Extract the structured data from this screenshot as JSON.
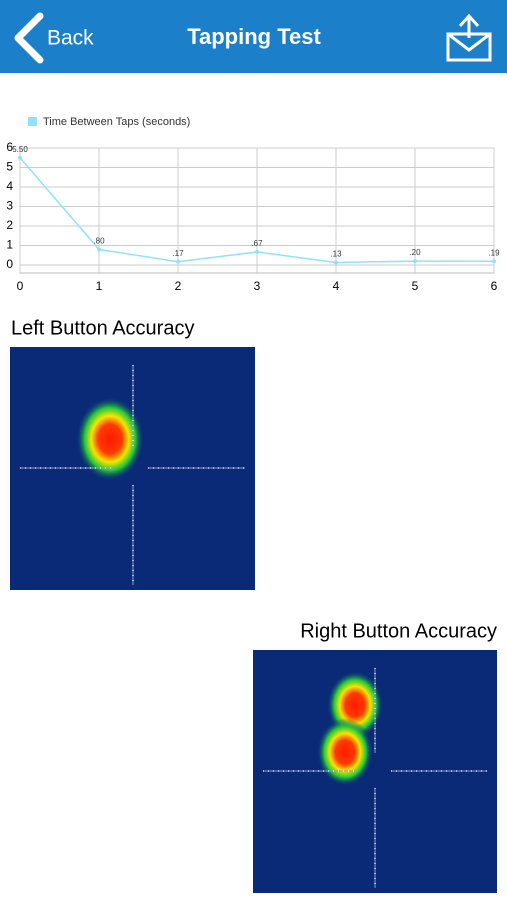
{
  "header": {
    "back": "Back",
    "title": "Tapping Test"
  },
  "chart_data": {
    "type": "line",
    "x": [
      0,
      1,
      2,
      3,
      4,
      5,
      6
    ],
    "series": [
      {
        "name": "Time Between Taps (seconds)",
        "color": "#8fe3f7",
        "values": [
          5.5,
          0.8,
          0.17,
          0.67,
          0.13,
          0.2,
          0.19
        ],
        "value_labels": [
          "5.50",
          ".80",
          ".17",
          ".67",
          ".13",
          ".20",
          ".19"
        ]
      }
    ],
    "xlim": [
      0,
      6
    ],
    "xticks": [
      0,
      1,
      2,
      3,
      4,
      5,
      6
    ],
    "ylim": [
      0,
      6
    ],
    "yticks": [
      0,
      1,
      2,
      3,
      4,
      5,
      6
    ],
    "grid": true,
    "legend": "top-left"
  },
  "heatmaps": [
    {
      "label": "Left Button Accuracy"
    },
    {
      "label": "Right Button Accuracy"
    }
  ]
}
